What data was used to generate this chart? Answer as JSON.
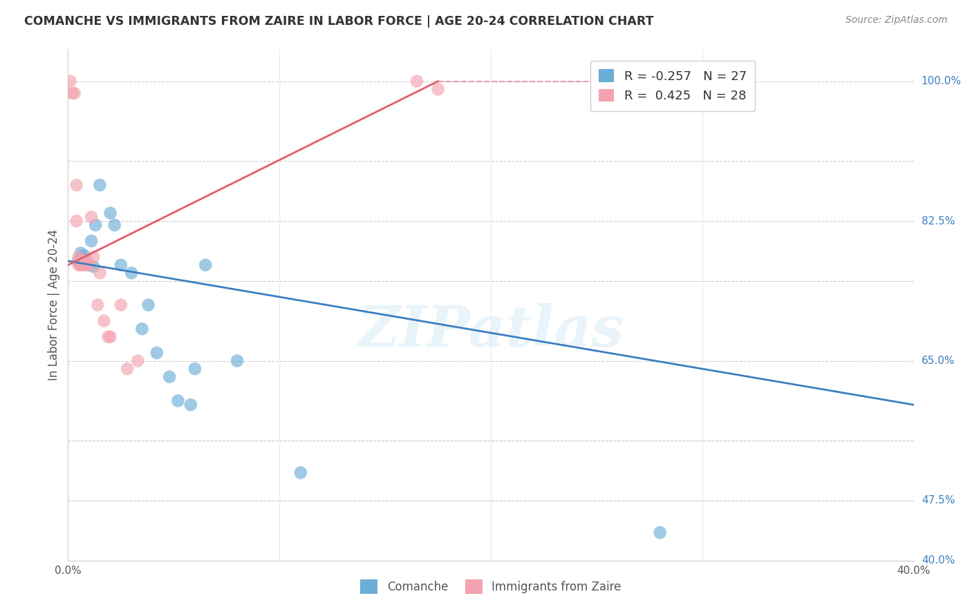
{
  "title": "COMANCHE VS IMMIGRANTS FROM ZAIRE IN LABOR FORCE | AGE 20-24 CORRELATION CHART",
  "source": "Source: ZipAtlas.com",
  "ylabel_label": "In Labor Force | Age 20-24",
  "legend_blue_r": "-0.257",
  "legend_blue_n": "27",
  "legend_pink_r": "0.425",
  "legend_pink_n": "28",
  "watermark": "ZIPatlas",
  "blue_color": "#6baed6",
  "pink_color": "#f4a3b0",
  "blue_line_color": "#3a7fc1",
  "pink_line_color": "#e05c6e",
  "blue_scatter": [
    [
      0.0048,
      0.775
    ],
    [
      0.0055,
      0.772
    ],
    [
      0.006,
      0.785
    ],
    [
      0.007,
      0.778
    ],
    [
      0.0075,
      0.782
    ],
    [
      0.008,
      0.775
    ],
    [
      0.009,
      0.772
    ],
    [
      0.01,
      0.77
    ],
    [
      0.011,
      0.8
    ],
    [
      0.012,
      0.768
    ],
    [
      0.013,
      0.82
    ],
    [
      0.015,
      0.87
    ],
    [
      0.02,
      0.835
    ],
    [
      0.022,
      0.82
    ],
    [
      0.025,
      0.77
    ],
    [
      0.03,
      0.76
    ],
    [
      0.035,
      0.69
    ],
    [
      0.038,
      0.72
    ],
    [
      0.042,
      0.66
    ],
    [
      0.048,
      0.63
    ],
    [
      0.052,
      0.6
    ],
    [
      0.058,
      0.595
    ],
    [
      0.06,
      0.64
    ],
    [
      0.065,
      0.77
    ],
    [
      0.08,
      0.65
    ],
    [
      0.11,
      0.51
    ],
    [
      0.28,
      0.435
    ]
  ],
  "pink_scatter": [
    [
      0.001,
      1.0
    ],
    [
      0.002,
      0.985
    ],
    [
      0.003,
      0.985
    ],
    [
      0.004,
      0.87
    ],
    [
      0.004,
      0.825
    ],
    [
      0.005,
      0.78
    ],
    [
      0.005,
      0.77
    ],
    [
      0.006,
      0.775
    ],
    [
      0.006,
      0.77
    ],
    [
      0.007,
      0.775
    ],
    [
      0.007,
      0.77
    ],
    [
      0.008,
      0.775
    ],
    [
      0.008,
      0.77
    ],
    [
      0.009,
      0.775
    ],
    [
      0.009,
      0.77
    ],
    [
      0.01,
      0.77
    ],
    [
      0.011,
      0.83
    ],
    [
      0.012,
      0.78
    ],
    [
      0.014,
      0.72
    ],
    [
      0.015,
      0.76
    ],
    [
      0.017,
      0.7
    ],
    [
      0.019,
      0.68
    ],
    [
      0.02,
      0.68
    ],
    [
      0.025,
      0.72
    ],
    [
      0.028,
      0.64
    ],
    [
      0.033,
      0.65
    ],
    [
      0.165,
      1.0
    ],
    [
      0.175,
      0.99
    ]
  ],
  "blue_line": [
    0.0,
    0.775,
    0.4,
    0.595
  ],
  "pink_line_solid": [
    0.0,
    0.77,
    0.175,
    1.0
  ],
  "pink_line_dash": [
    0.175,
    1.0,
    0.275,
    1.0
  ],
  "xlim": [
    0.0,
    0.4
  ],
  "ylim": [
    0.4,
    1.04
  ],
  "ytick_vals": [
    0.4,
    0.475,
    0.55,
    0.65,
    0.75,
    0.825,
    0.9,
    1.0
  ],
  "ytick_right_labels": [
    "40.0%",
    "47.5%",
    "65.0%",
    "82.5%",
    "100.0%"
  ],
  "ytick_right_vals": [
    0.4,
    0.475,
    0.65,
    0.825,
    1.0
  ],
  "xtick_vals": [
    0.0,
    0.1,
    0.2,
    0.3,
    0.4
  ]
}
